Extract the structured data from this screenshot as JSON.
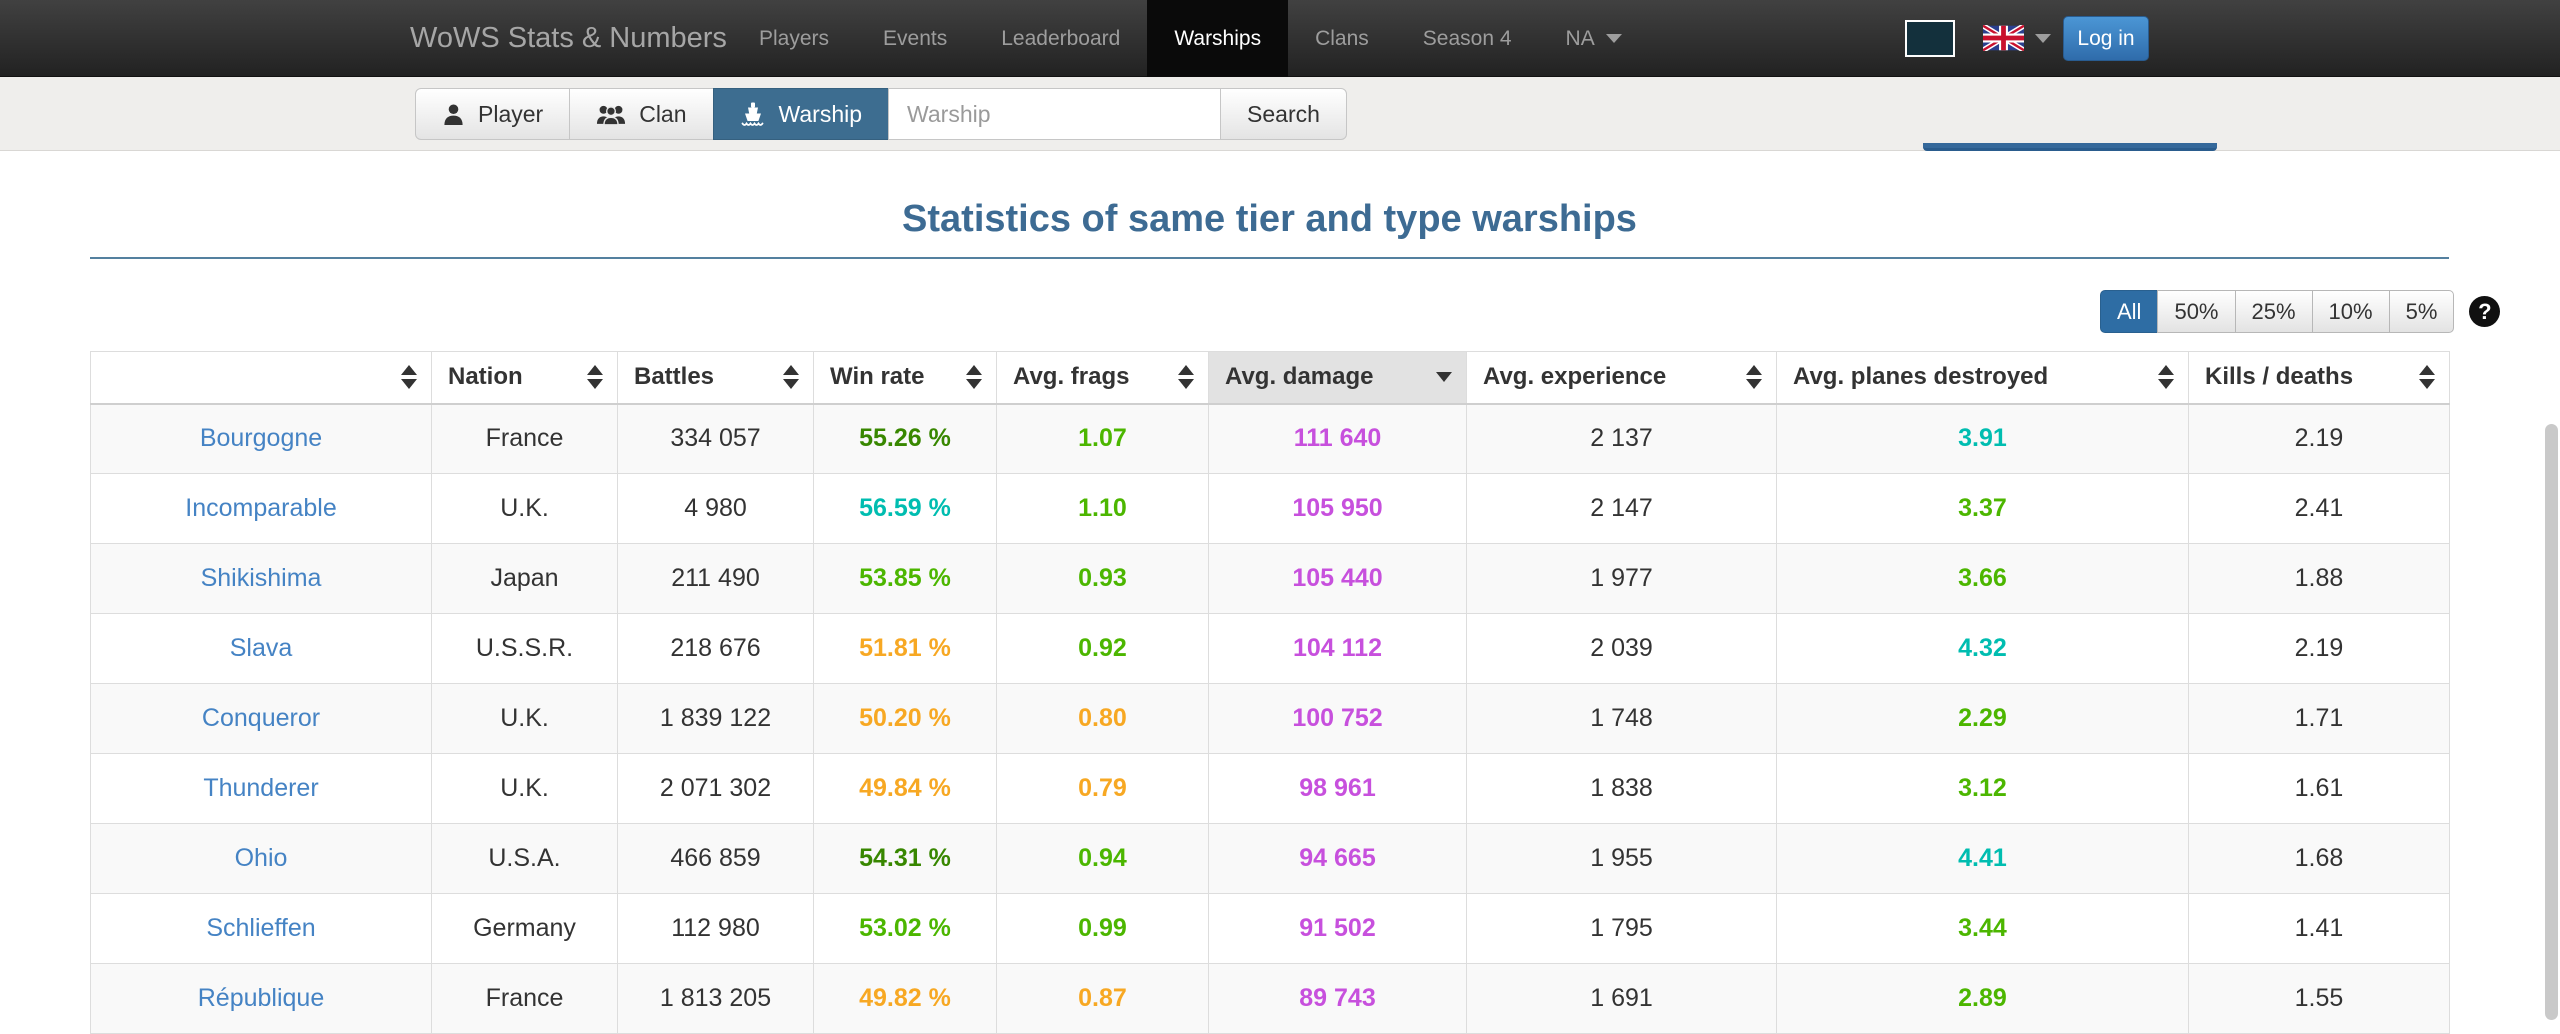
{
  "navbar": {
    "brand": "WoWS Stats & Numbers",
    "items": [
      {
        "label": "Players"
      },
      {
        "label": "Events"
      },
      {
        "label": "Leaderboard"
      },
      {
        "label": "Warships"
      },
      {
        "label": "Clans"
      },
      {
        "label": "Season 4"
      },
      {
        "label": "NA"
      }
    ],
    "active_item": "Warships",
    "login_label": "Log in"
  },
  "search_bar": {
    "tabs": [
      {
        "label": "Player",
        "icon": "person-icon"
      },
      {
        "label": "Clan",
        "icon": "group-icon"
      },
      {
        "label": "Warship",
        "icon": "ship-icon"
      }
    ],
    "active_tab": "Warship",
    "input_value": "",
    "input_placeholder": "Warship",
    "search_label": "Search"
  },
  "page": {
    "title": "Statistics of same tier and type warships"
  },
  "filters": {
    "options": [
      "All",
      "50%",
      "25%",
      "10%",
      "5%"
    ],
    "active": "All"
  },
  "icons": {
    "help": "?"
  },
  "colors": {
    "accent_blue": "#2e6da4",
    "link_blue": "#4583c4",
    "damage": "#c750dd",
    "tiers": {
      "unicum": "#00bdb0",
      "great": "#388700",
      "good": "#4cb600",
      "average": "#f7a823"
    }
  },
  "table": {
    "columns": [
      "",
      "Nation",
      "Battles",
      "Win rate",
      "Avg. frags",
      "Avg. damage",
      "Avg. experience",
      "Avg. planes destroyed",
      "Kills / deaths"
    ],
    "sorted_column": "Avg. damage",
    "sort_direction": "desc",
    "rows": [
      {
        "name": "Bourgogne",
        "nation": "France",
        "battles": "334 057",
        "win_rate": "55.26 %",
        "win_tier": "great",
        "frags": "1.07",
        "frags_tier": "good",
        "damage": "111 640",
        "experience": "2 137",
        "planes": "3.91",
        "planes_tier": "unicum",
        "kills_deaths": "2.19"
      },
      {
        "name": "Incomparable",
        "nation": "U.K.",
        "battles": "4 980",
        "win_rate": "56.59 %",
        "win_tier": "unicum",
        "frags": "1.10",
        "frags_tier": "good",
        "damage": "105 950",
        "experience": "2 147",
        "planes": "3.37",
        "planes_tier": "good",
        "kills_deaths": "2.41"
      },
      {
        "name": "Shikishima",
        "nation": "Japan",
        "battles": "211 490",
        "win_rate": "53.85 %",
        "win_tier": "good",
        "frags": "0.93",
        "frags_tier": "good",
        "damage": "105 440",
        "experience": "1 977",
        "planes": "3.66",
        "planes_tier": "good",
        "kills_deaths": "1.88"
      },
      {
        "name": "Slava",
        "nation": "U.S.S.R.",
        "battles": "218 676",
        "win_rate": "51.81 %",
        "win_tier": "average",
        "frags": "0.92",
        "frags_tier": "good",
        "damage": "104 112",
        "experience": "2 039",
        "planes": "4.32",
        "planes_tier": "unicum",
        "kills_deaths": "2.19"
      },
      {
        "name": "Conqueror",
        "nation": "U.K.",
        "battles": "1 839 122",
        "win_rate": "50.20 %",
        "win_tier": "average",
        "frags": "0.80",
        "frags_tier": "average",
        "damage": "100 752",
        "experience": "1 748",
        "planes": "2.29",
        "planes_tier": "good",
        "kills_deaths": "1.71"
      },
      {
        "name": "Thunderer",
        "nation": "U.K.",
        "battles": "2 071 302",
        "win_rate": "49.84 %",
        "win_tier": "average",
        "frags": "0.79",
        "frags_tier": "average",
        "damage": "98 961",
        "experience": "1 838",
        "planes": "3.12",
        "planes_tier": "good",
        "kills_deaths": "1.61"
      },
      {
        "name": "Ohio",
        "nation": "U.S.A.",
        "battles": "466 859",
        "win_rate": "54.31 %",
        "win_tier": "great",
        "frags": "0.94",
        "frags_tier": "good",
        "damage": "94 665",
        "experience": "1 955",
        "planes": "4.41",
        "planes_tier": "unicum",
        "kills_deaths": "1.68"
      },
      {
        "name": "Schlieffen",
        "nation": "Germany",
        "battles": "112 980",
        "win_rate": "53.02 %",
        "win_tier": "good",
        "frags": "0.99",
        "frags_tier": "good",
        "damage": "91 502",
        "experience": "1 795",
        "planes": "3.44",
        "planes_tier": "good",
        "kills_deaths": "1.41"
      },
      {
        "name": "République",
        "nation": "France",
        "battles": "1 813 205",
        "win_rate": "49.82 %",
        "win_tier": "average",
        "frags": "0.87",
        "frags_tier": "average",
        "damage": "89 743",
        "experience": "1 691",
        "planes": "2.89",
        "planes_tier": "good",
        "kills_deaths": "1.55"
      }
    ]
  }
}
